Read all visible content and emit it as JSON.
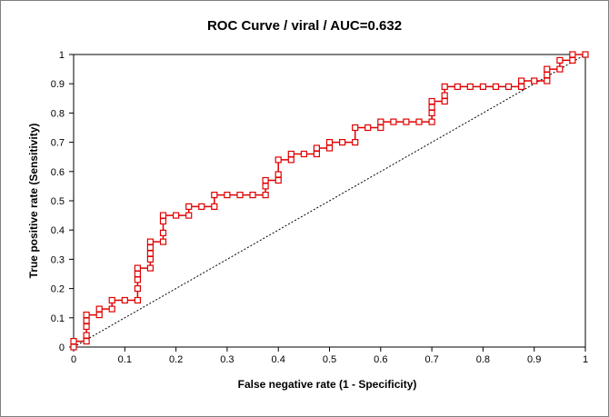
{
  "chart_data": {
    "type": "line",
    "title": "ROC Curve / viral / AUC=0.632",
    "xlabel": "False negative rate (1 - Specificity)",
    "ylabel": "True positive rate (Sensitivity)",
    "xlim": [
      0,
      1
    ],
    "ylim": [
      0,
      1
    ],
    "x_ticks": [
      "0",
      "0.1",
      "0.2",
      "0.3",
      "0.4",
      "0.5",
      "0.6",
      "0.7",
      "0.8",
      "0.9",
      "1"
    ],
    "y_ticks": [
      "0",
      "0.1",
      "0.2",
      "0.3",
      "0.4",
      "0.5",
      "0.6",
      "0.7",
      "0.8",
      "0.9",
      "1"
    ],
    "grid": false,
    "legend": "none",
    "series": [
      {
        "role": "roc-curve",
        "color": "#e00000",
        "marker": "open-square",
        "x": [
          0,
          0,
          0.025,
          0.025,
          0.025,
          0.025,
          0.025,
          0.05,
          0.05,
          0.075,
          0.075,
          0.1,
          0.125,
          0.125,
          0.125,
          0.125,
          0.125,
          0.15,
          0.15,
          0.15,
          0.15,
          0.15,
          0.175,
          0.175,
          0.175,
          0.175,
          0.2,
          0.225,
          0.225,
          0.25,
          0.275,
          0.275,
          0.3,
          0.325,
          0.35,
          0.375,
          0.375,
          0.375,
          0.4,
          0.4,
          0.4,
          0.425,
          0.425,
          0.45,
          0.475,
          0.475,
          0.5,
          0.5,
          0.525,
          0.55,
          0.55,
          0.575,
          0.6,
          0.6,
          0.625,
          0.65,
          0.675,
          0.7,
          0.7,
          0.7,
          0.7,
          0.725,
          0.725,
          0.725,
          0.75,
          0.775,
          0.8,
          0.825,
          0.85,
          0.875,
          0.875,
          0.9,
          0.925,
          0.925,
          0.925,
          0.95,
          0.95,
          0.975,
          0.975,
          1
        ],
        "y": [
          0,
          0.02,
          0.02,
          0.04,
          0.07,
          0.09,
          0.11,
          0.11,
          0.13,
          0.13,
          0.16,
          0.16,
          0.16,
          0.2,
          0.23,
          0.25,
          0.27,
          0.27,
          0.3,
          0.32,
          0.34,
          0.36,
          0.36,
          0.39,
          0.43,
          0.45,
          0.45,
          0.45,
          0.48,
          0.48,
          0.48,
          0.52,
          0.52,
          0.52,
          0.52,
          0.52,
          0.55,
          0.57,
          0.57,
          0.59,
          0.64,
          0.64,
          0.66,
          0.66,
          0.66,
          0.68,
          0.68,
          0.7,
          0.7,
          0.7,
          0.75,
          0.75,
          0.75,
          0.77,
          0.77,
          0.77,
          0.77,
          0.77,
          0.8,
          0.82,
          0.84,
          0.84,
          0.86,
          0.89,
          0.89,
          0.89,
          0.89,
          0.89,
          0.89,
          0.89,
          0.91,
          0.91,
          0.91,
          0.93,
          0.95,
          0.95,
          0.98,
          0.98,
          1,
          1
        ]
      },
      {
        "role": "diagonal-reference",
        "color": "#000000",
        "style": "dotted",
        "x": [
          0,
          1
        ],
        "y": [
          0,
          1
        ]
      }
    ]
  }
}
